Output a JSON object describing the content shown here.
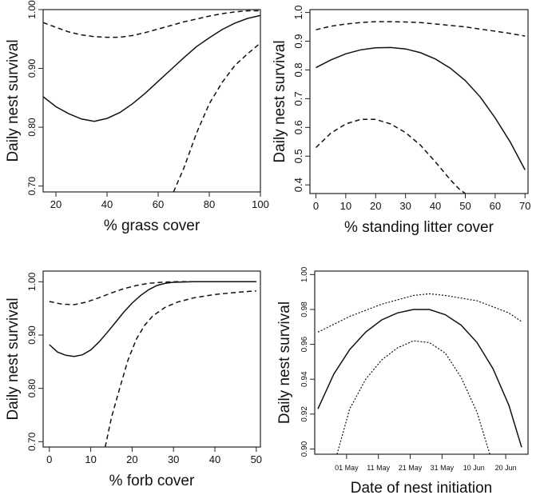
{
  "chart_data": [
    {
      "id": "grass",
      "type": "line",
      "title": "",
      "xlabel": "% grass cover",
      "ylabel": "Daily nest survival",
      "xlim": [
        15,
        100
      ],
      "ylim": [
        0.69,
        1.0
      ],
      "xticks": [
        20,
        40,
        60,
        80,
        100
      ],
      "xtick_labels": [
        "20",
        "40",
        "60",
        "80",
        "100"
      ],
      "yticks": [
        0.7,
        0.8,
        0.9,
        1.0
      ],
      "ytick_labels": [
        "0.70",
        "0.80",
        "0.90",
        "1.00"
      ],
      "grid": false,
      "series": [
        {
          "role": "estimate",
          "style": "solid",
          "x": [
            15,
            20,
            25,
            30,
            35,
            40,
            45,
            50,
            55,
            60,
            65,
            70,
            75,
            80,
            85,
            90,
            95,
            100
          ],
          "y": [
            0.852,
            0.835,
            0.823,
            0.814,
            0.81,
            0.815,
            0.825,
            0.84,
            0.858,
            0.878,
            0.898,
            0.918,
            0.937,
            0.952,
            0.966,
            0.977,
            0.985,
            0.99
          ]
        },
        {
          "role": "upper",
          "style": "dashed",
          "x": [
            15,
            20,
            25,
            30,
            35,
            40,
            45,
            50,
            55,
            60,
            65,
            70,
            75,
            80,
            85,
            90,
            95,
            100
          ],
          "y": [
            0.978,
            0.97,
            0.962,
            0.957,
            0.954,
            0.953,
            0.953,
            0.956,
            0.961,
            0.967,
            0.973,
            0.979,
            0.984,
            0.989,
            0.993,
            0.996,
            0.998,
            0.998
          ]
        },
        {
          "role": "lower",
          "style": "dashed",
          "x": [
            66,
            70,
            75,
            80,
            85,
            90,
            95,
            100
          ],
          "y": [
            0.69,
            0.73,
            0.79,
            0.84,
            0.876,
            0.905,
            0.925,
            0.943
          ]
        }
      ]
    },
    {
      "id": "litter",
      "type": "line",
      "title": "",
      "xlabel": "% standing litter cover",
      "ylabel": "Daily nest survival",
      "xlim": [
        -2,
        71
      ],
      "ylim": [
        0.37,
        1.01
      ],
      "xticks": [
        0,
        10,
        20,
        30,
        40,
        50,
        60,
        70
      ],
      "xtick_labels": [
        "0",
        "10",
        "20",
        "30",
        "40",
        "50",
        "60",
        "70"
      ],
      "yticks": [
        0.4,
        0.5,
        0.6,
        0.7,
        0.8,
        0.9,
        1.0
      ],
      "ytick_labels": [
        "0.4",
        "0.5",
        "0.6",
        "0.7",
        "0.8",
        "0.9",
        "1.0"
      ],
      "grid": false,
      "series": [
        {
          "role": "estimate",
          "style": "solid",
          "x": [
            0,
            5,
            10,
            15,
            20,
            25,
            30,
            35,
            40,
            45,
            50,
            55,
            60,
            65,
            70
          ],
          "y": [
            0.808,
            0.835,
            0.856,
            0.87,
            0.877,
            0.878,
            0.873,
            0.86,
            0.838,
            0.806,
            0.763,
            0.706,
            0.633,
            0.55,
            0.452
          ]
        },
        {
          "role": "upper",
          "style": "dashed",
          "x": [
            0,
            5,
            10,
            15,
            20,
            25,
            30,
            35,
            40,
            45,
            50,
            55,
            60,
            65,
            70
          ],
          "y": [
            0.94,
            0.952,
            0.96,
            0.965,
            0.968,
            0.968,
            0.967,
            0.965,
            0.96,
            0.955,
            0.95,
            0.942,
            0.935,
            0.927,
            0.918
          ]
        },
        {
          "role": "lower",
          "style": "dashed",
          "x": [
            0,
            5,
            10,
            15,
            20,
            25,
            30,
            35,
            40,
            45,
            48,
            50
          ],
          "y": [
            0.53,
            0.58,
            0.612,
            0.628,
            0.628,
            0.612,
            0.582,
            0.538,
            0.48,
            0.418,
            0.385,
            0.37
          ]
        }
      ]
    },
    {
      "id": "forb",
      "type": "line",
      "title": "",
      "xlabel": "% forb cover",
      "ylabel": "Daily nest survival",
      "xlim": [
        -1.5,
        51
      ],
      "ylim": [
        0.69,
        1.02
      ],
      "xticks": [
        0,
        10,
        20,
        30,
        40,
        50
      ],
      "xtick_labels": [
        "0",
        "10",
        "20",
        "30",
        "40",
        "50"
      ],
      "yticks": [
        0.7,
        0.8,
        0.9,
        1.0
      ],
      "ytick_labels": [
        "0.70",
        "0.80",
        "0.90",
        "1.00"
      ],
      "grid": false,
      "series": [
        {
          "role": "estimate",
          "style": "solid",
          "x": [
            0,
            2,
            4,
            6,
            8,
            10,
            12,
            14,
            16,
            18,
            20,
            22,
            24,
            26,
            28,
            30,
            35,
            40,
            45,
            50
          ],
          "y": [
            0.882,
            0.868,
            0.862,
            0.86,
            0.863,
            0.872,
            0.887,
            0.905,
            0.924,
            0.943,
            0.96,
            0.974,
            0.985,
            0.993,
            0.997,
            0.999,
            1.0,
            1.0,
            1.0,
            1.0
          ]
        },
        {
          "role": "upper",
          "style": "dashed",
          "x": [
            0,
            3,
            6,
            9,
            12,
            15,
            18,
            21,
            24,
            27,
            30,
            35,
            40,
            45,
            50
          ],
          "y": [
            0.963,
            0.958,
            0.957,
            0.962,
            0.97,
            0.979,
            0.987,
            0.993,
            0.997,
            0.999,
            1.0,
            1.0,
            1.0,
            1.0,
            1.0
          ]
        },
        {
          "role": "lower",
          "style": "dashed",
          "x": [
            13.5,
            15,
            17,
            19,
            21,
            23,
            25,
            28,
            31,
            35,
            40,
            45,
            50
          ],
          "y": [
            0.69,
            0.745,
            0.8,
            0.853,
            0.892,
            0.918,
            0.936,
            0.952,
            0.962,
            0.97,
            0.976,
            0.98,
            0.983
          ]
        }
      ]
    },
    {
      "id": "date",
      "type": "line",
      "title": "",
      "xlabel": "Date of nest initiation",
      "ylabel": "Daily nest survival",
      "x_unit": "date",
      "xlim": [
        "2000-04-21",
        "2000-06-27"
      ],
      "ylim": [
        0.897,
        1.002
      ],
      "xticks": [
        "2000-05-01",
        "2000-05-11",
        "2000-05-21",
        "2000-05-31",
        "2000-06-10",
        "2000-06-20"
      ],
      "xtick_labels": [
        "01 May",
        "11 May",
        "21 May",
        "31 May",
        "10 Jun",
        "20 Jun"
      ],
      "yticks": [
        0.9,
        0.92,
        0.94,
        0.96,
        0.98,
        1.0
      ],
      "ytick_labels": [
        "0.90",
        "0.92",
        "0.94",
        "0.96",
        "0.98",
        "1.00"
      ],
      "grid": false,
      "series": [
        {
          "role": "estimate",
          "style": "solid",
          "x": [
            "2000-04-22",
            "2000-04-27",
            "2000-05-02",
            "2000-05-07",
            "2000-05-12",
            "2000-05-17",
            "2000-05-22",
            "2000-05-27",
            "2000-06-01",
            "2000-06-06",
            "2000-06-11",
            "2000-06-16",
            "2000-06-21",
            "2000-06-25"
          ],
          "y": [
            0.923,
            0.943,
            0.957,
            0.967,
            0.974,
            0.978,
            0.98,
            0.98,
            0.977,
            0.971,
            0.961,
            0.946,
            0.925,
            0.901
          ]
        },
        {
          "role": "upper",
          "style": "dotted",
          "x": [
            "2000-04-22",
            "2000-05-02",
            "2000-05-12",
            "2000-05-22",
            "2000-05-27",
            "2000-06-01",
            "2000-06-11",
            "2000-06-21",
            "2000-06-25"
          ],
          "y": [
            0.967,
            0.976,
            0.983,
            0.988,
            0.989,
            0.988,
            0.985,
            0.978,
            0.973
          ]
        },
        {
          "role": "lower",
          "style": "dotted",
          "x": [
            "2000-04-28",
            "2000-05-02",
            "2000-05-07",
            "2000-05-12",
            "2000-05-17",
            "2000-05-22",
            "2000-05-27",
            "2000-06-01",
            "2000-06-06",
            "2000-06-11",
            "2000-06-15"
          ],
          "y": [
            0.897,
            0.923,
            0.94,
            0.951,
            0.958,
            0.962,
            0.961,
            0.955,
            0.941,
            0.921,
            0.897
          ]
        }
      ]
    }
  ],
  "colors": {
    "line": "#111111",
    "axis": "#222222",
    "background": "#ffffff"
  }
}
